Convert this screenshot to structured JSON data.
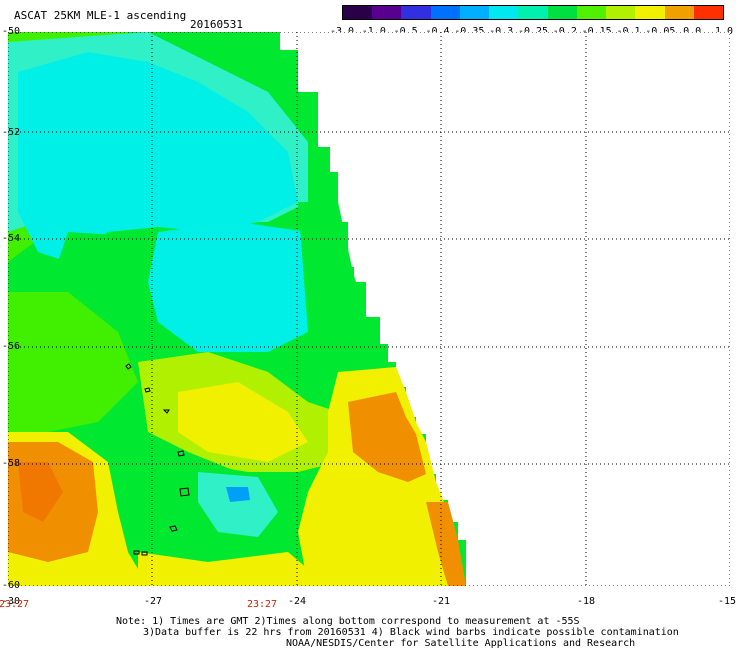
{
  "header": {
    "title": "ASCAT 25KM MLE-1 ascending",
    "date": "20160531"
  },
  "colorbar": {
    "labels": [
      "-3.0",
      "-1.0",
      "-0.5",
      "-0.4",
      "-0.35",
      "-0.3",
      "-0.25",
      "-0.2",
      "-0.15",
      "-0.1",
      "-0.05",
      "0.0",
      "1.0"
    ],
    "colors": [
      "#2a0048",
      "#5a0090",
      "#3030e0",
      "#0070ff",
      "#00b0ff",
      "#00e8f0",
      "#00f0b0",
      "#00e040",
      "#50f000",
      "#b0f000",
      "#f0f000",
      "#f0a000",
      "#ff3000"
    ]
  },
  "axes": {
    "lat_labels": [
      "-50",
      "-52",
      "-54",
      "-56",
      "-58",
      "-60"
    ],
    "lon_labels": [
      "-30",
      "-27",
      "-24",
      "-21",
      "-18",
      "-15"
    ],
    "time_labels": [
      "23:27",
      "23:27"
    ]
  },
  "notes": {
    "line1": "Note: 1) Times are GMT 2)Times along bottom correspond to measurement at -55S",
    "line2": "3)Data buffer is 22 hrs from 20160531 4) Black wind barbs indicate possible contamination",
    "line3": "NOAA/NESDIS/Center for Satellite Applications and Research"
  },
  "palette": {
    "cyan": "#00f0e8",
    "light_cyan": "#30f0c8",
    "green": "#00e830",
    "light_green": "#40f000",
    "yellow_green": "#b0f000",
    "yellow": "#f0f000",
    "orange": "#f09000",
    "dark_orange": "#f07800",
    "blue": "#00a0f8"
  }
}
